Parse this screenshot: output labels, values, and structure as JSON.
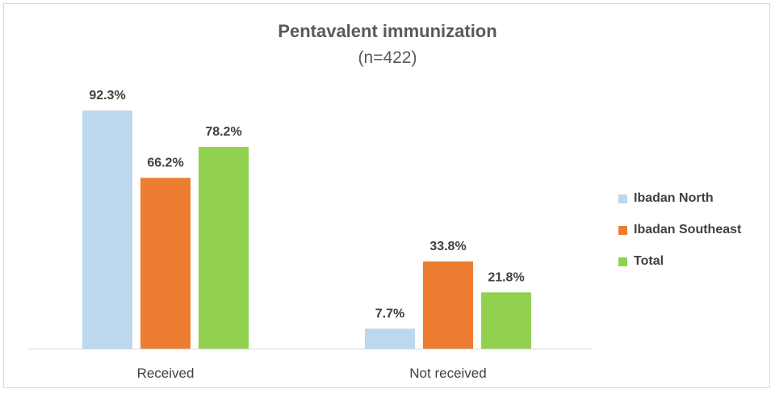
{
  "chart_data": {
    "type": "bar",
    "title": "Pentavalent immunization",
    "subtitle": "(n=422)",
    "categories": [
      "Received",
      "Not received"
    ],
    "series": [
      {
        "name": "Ibadan North",
        "color": "#bdd7ee",
        "values": [
          92.3,
          7.7
        ],
        "labels": [
          "92.3%",
          "7.7%"
        ]
      },
      {
        "name": "Ibadan Southeast",
        "color": "#ed7d31",
        "values": [
          66.2,
          33.8
        ],
        "labels": [
          "66.2%",
          "33.8%"
        ]
      },
      {
        "name": "Total",
        "color": "#92d050",
        "values": [
          78.2,
          21.8
        ],
        "labels": [
          "78.2%",
          "21.8%"
        ]
      }
    ],
    "ylim": [
      0,
      100
    ],
    "grid": false,
    "legend_position": "right"
  }
}
